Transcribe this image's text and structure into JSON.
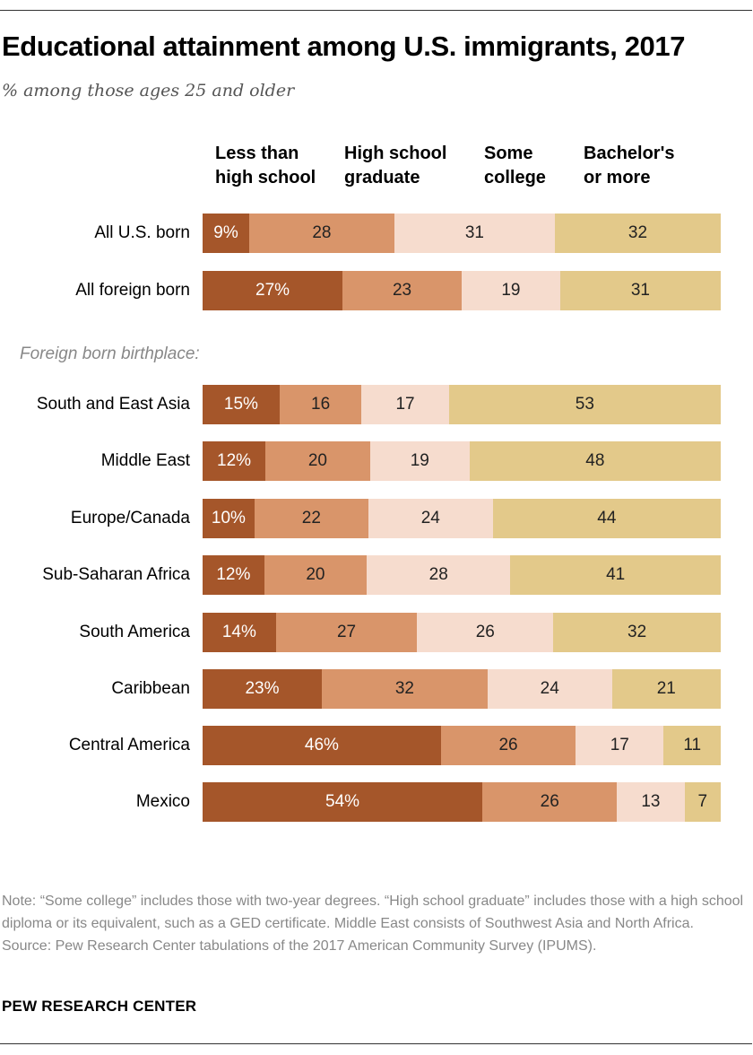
{
  "header": {
    "title": "Educational attainment among U.S. immigrants, 2017",
    "subtitle": "% among those ages 25 and older"
  },
  "section_label": "Foreign born birthplace:",
  "colors": [
    "#a5562a",
    "#d9956a",
    "#f6dcce",
    "#e3c98a"
  ],
  "chart_data": {
    "type": "bar",
    "orientation": "horizontal",
    "stacked": true,
    "title": "Educational attainment among U.S. immigrants, 2017",
    "subtitle": "% among those ages 25 and older",
    "legend": [
      [
        "Less than",
        "high school"
      ],
      [
        "High school",
        "graduate"
      ],
      [
        "Some",
        "college"
      ],
      [
        "Bachelor's",
        "or more"
      ]
    ],
    "series_names": [
      "Less than high school",
      "High school graduate",
      "Some college",
      "Bachelor's or more"
    ],
    "rows": [
      {
        "label": "All U.S. born",
        "values": [
          9,
          28,
          31,
          32
        ],
        "first_label": "9%"
      },
      {
        "label": "All foreign born",
        "values": [
          27,
          23,
          19,
          31
        ],
        "first_label": "27%"
      },
      {
        "label": "South and East Asia",
        "values": [
          15,
          16,
          17,
          53
        ],
        "first_label": "15%"
      },
      {
        "label": "Middle East",
        "values": [
          12,
          20,
          19,
          48
        ],
        "first_label": "12%"
      },
      {
        "label": "Europe/Canada",
        "values": [
          10,
          22,
          24,
          44
        ],
        "first_label": "10%"
      },
      {
        "label": "Sub-Saharan Africa",
        "values": [
          12,
          20,
          28,
          41
        ],
        "first_label": "12%"
      },
      {
        "label": "South America",
        "values": [
          14,
          27,
          26,
          32
        ],
        "first_label": "14%"
      },
      {
        "label": "Caribbean",
        "values": [
          23,
          32,
          24,
          21
        ],
        "first_label": "23%"
      },
      {
        "label": "Central America",
        "values": [
          46,
          26,
          17,
          11
        ],
        "first_label": "46%"
      },
      {
        "label": "Mexico",
        "values": [
          54,
          26,
          13,
          7
        ],
        "first_label": "54%"
      }
    ]
  },
  "footer": {
    "note": "Note: “Some college” includes those with two-year degrees. “High school graduate” includes those with a high school diploma or its equivalent, such as a GED certificate. Middle East consists of Southwest Asia and North Africa.",
    "source": "Source: Pew Research Center tabulations of the 2017 American Community Survey (IPUMS).",
    "brand": "PEW RESEARCH CENTER"
  }
}
